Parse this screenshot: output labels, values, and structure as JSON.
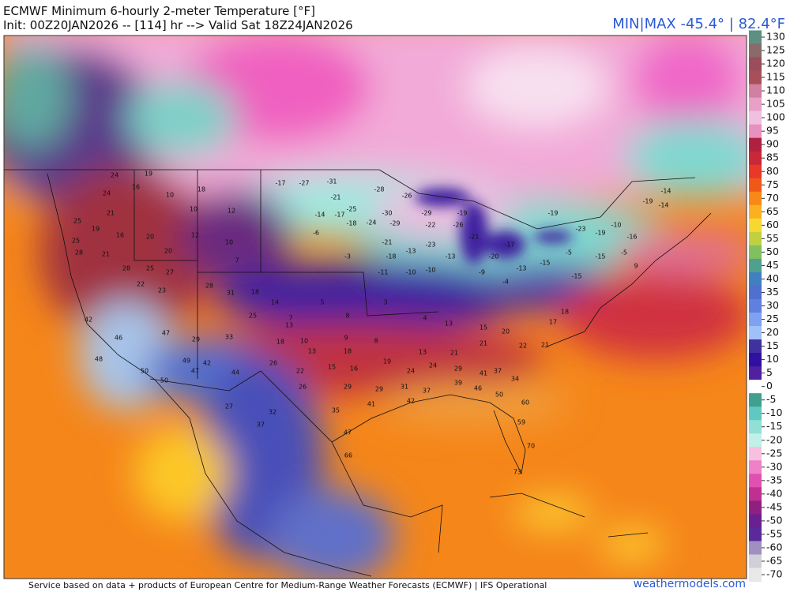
{
  "header": {
    "title": "ECMWF Minimum 6-hourly 2-meter Temperature [°F]",
    "subtitle": "Init: 00Z20JAN2026 -- [114] hr --> Valid Sat 18Z24JAN2026",
    "min_max": "MIN|MAX -45.4° | 82.4°F"
  },
  "colorbar": {
    "ticks": [
      130,
      125,
      120,
      115,
      110,
      105,
      100,
      95,
      90,
      85,
      80,
      75,
      70,
      65,
      60,
      55,
      50,
      45,
      40,
      35,
      30,
      25,
      20,
      15,
      10,
      5,
      0,
      -5,
      -10,
      -15,
      -20,
      -25,
      -30,
      -35,
      -40,
      -45,
      -50,
      -55,
      -60,
      -65,
      -70
    ],
    "colors": [
      "#5f8f80",
      "#8a6a6a",
      "#9a4d5a",
      "#a8505a",
      "#d080a0",
      "#e8a0c8",
      "#f0c0e0",
      "#e890c0",
      "#b02040",
      "#c82838",
      "#e83828",
      "#f05818",
      "#f88818",
      "#fcb020",
      "#f8d830",
      "#c0d040",
      "#80c060",
      "#50a090",
      "#4080c0",
      "#5070d0",
      "#6080e0",
      "#80a0f0",
      "#a0c0f8",
      "#4030a0",
      "#3010a0",
      "#5020a0",
      "#ffffff",
      "#40a090",
      "#60c8c0",
      "#90e0d8",
      "#c0f0e8",
      "#f8c0e0",
      "#f080c8",
      "#e050b0",
      "#c03090",
      "#902080",
      "#6a2090",
      "#5a2a9a",
      "#a090c0",
      "#d0d0d8",
      "#e8e8e8"
    ]
  },
  "station_values": [
    24,
    19,
    24,
    16,
    10,
    18,
    12,
    10,
    21,
    25,
    19,
    16,
    20,
    20,
    12,
    10,
    7,
    25,
    28,
    21,
    28,
    25,
    27,
    22,
    23,
    28,
    31,
    18,
    14,
    25,
    7,
    5,
    8,
    3,
    4,
    13,
    15,
    20,
    17,
    18,
    42,
    46,
    47,
    29,
    33,
    13,
    10,
    9,
    8,
    13,
    21,
    21,
    22,
    21,
    49,
    42,
    44,
    26,
    22,
    15,
    16,
    19,
    24,
    24,
    29,
    41,
    37,
    34,
    26,
    29,
    29,
    31,
    37,
    39,
    46,
    50,
    60,
    41,
    42,
    59,
    70,
    73,
    32,
    27,
    37,
    35,
    47,
    66,
    47,
    50,
    50,
    48,
    -27,
    -17,
    -31,
    -28,
    -26,
    -21,
    -25,
    -30,
    -29,
    -14,
    -17,
    -6,
    -18,
    -24,
    -29,
    -22,
    -19,
    -26,
    -21,
    -21,
    -13,
    -23,
    -13,
    -20,
    -17,
    -18,
    -3,
    -11,
    -10,
    -10,
    -9,
    -4,
    -15,
    -5,
    -15,
    -5,
    9,
    -23,
    -19,
    -10,
    -19,
    -14,
    -14,
    -16,
    -19,
    -15,
    -13,
    18,
    18,
    13
  ],
  "footer": {
    "credit": "Service based on data + products of European Centre for Medium-Range Weather Forecasts (ECMWF) | IFS Operational",
    "site": "weathermodels.com"
  }
}
